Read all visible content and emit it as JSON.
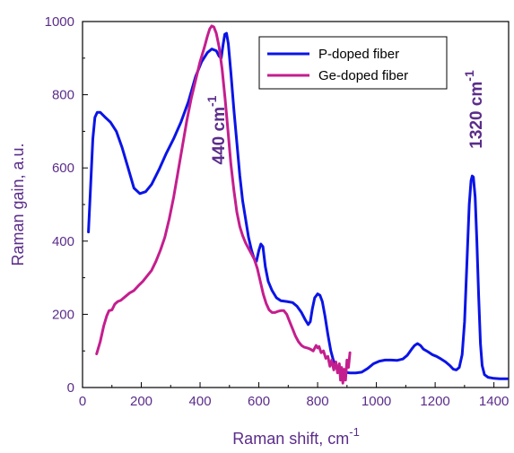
{
  "chart_data": {
    "type": "line",
    "title": "",
    "xlabel": "Raman shift, cm",
    "xlabel_superscript": "-1",
    "ylabel": "Raman gain, a.u.",
    "xlim": [
      0,
      1450
    ],
    "ylim": [
      0,
      1000
    ],
    "x_ticks": [
      0,
      200,
      400,
      600,
      800,
      1000,
      1200,
      1400
    ],
    "y_ticks": [
      0,
      200,
      400,
      600,
      800,
      1000
    ],
    "x_tick_labels": [
      "0",
      "200",
      "400",
      "600",
      "800",
      "1000",
      "1200",
      "1400"
    ],
    "y_tick_labels": [
      "0",
      "200",
      "400",
      "600",
      "800",
      "1000"
    ],
    "grid": false,
    "legend_position": "top-right",
    "axis_color": "#5b2c8a",
    "series": [
      {
        "name": "P-doped fiber",
        "color": "#0a14e6",
        "points": [
          [
            20,
            425
          ],
          [
            28,
            560
          ],
          [
            35,
            680
          ],
          [
            42,
            738
          ],
          [
            50,
            752
          ],
          [
            60,
            752
          ],
          [
            75,
            740
          ],
          [
            95,
            725
          ],
          [
            115,
            700
          ],
          [
            135,
            655
          ],
          [
            155,
            600
          ],
          [
            175,
            545
          ],
          [
            195,
            530
          ],
          [
            215,
            535
          ],
          [
            235,
            555
          ],
          [
            260,
            595
          ],
          [
            285,
            640
          ],
          [
            310,
            680
          ],
          [
            335,
            725
          ],
          [
            360,
            780
          ],
          [
            385,
            850
          ],
          [
            405,
            890
          ],
          [
            425,
            915
          ],
          [
            440,
            925
          ],
          [
            455,
            920
          ],
          [
            465,
            905
          ],
          [
            472,
            900
          ],
          [
            478,
            935
          ],
          [
            484,
            965
          ],
          [
            490,
            968
          ],
          [
            496,
            940
          ],
          [
            505,
            860
          ],
          [
            515,
            760
          ],
          [
            525,
            670
          ],
          [
            535,
            580
          ],
          [
            545,
            510
          ],
          [
            555,
            460
          ],
          [
            565,
            410
          ],
          [
            575,
            375
          ],
          [
            585,
            350
          ],
          [
            592,
            345
          ],
          [
            600,
            375
          ],
          [
            607,
            392
          ],
          [
            614,
            385
          ],
          [
            622,
            330
          ],
          [
            632,
            290
          ],
          [
            645,
            265
          ],
          [
            660,
            245
          ],
          [
            675,
            237
          ],
          [
            695,
            235
          ],
          [
            715,
            232
          ],
          [
            730,
            222
          ],
          [
            745,
            205
          ],
          [
            758,
            185
          ],
          [
            768,
            172
          ],
          [
            775,
            180
          ],
          [
            782,
            215
          ],
          [
            790,
            245
          ],
          [
            800,
            256
          ],
          [
            808,
            252
          ],
          [
            816,
            235
          ],
          [
            825,
            195
          ],
          [
            835,
            145
          ],
          [
            845,
            100
          ],
          [
            855,
            70
          ],
          [
            865,
            52
          ],
          [
            875,
            45
          ],
          [
            890,
            42
          ],
          [
            910,
            40
          ],
          [
            930,
            40
          ],
          [
            950,
            42
          ],
          [
            970,
            52
          ],
          [
            990,
            65
          ],
          [
            1010,
            72
          ],
          [
            1030,
            75
          ],
          [
            1050,
            75
          ],
          [
            1070,
            74
          ],
          [
            1090,
            78
          ],
          [
            1105,
            88
          ],
          [
            1120,
            105
          ],
          [
            1130,
            115
          ],
          [
            1140,
            120
          ],
          [
            1150,
            115
          ],
          [
            1160,
            105
          ],
          [
            1175,
            98
          ],
          [
            1190,
            90
          ],
          [
            1205,
            85
          ],
          [
            1220,
            78
          ],
          [
            1235,
            70
          ],
          [
            1250,
            60
          ],
          [
            1262,
            50
          ],
          [
            1272,
            48
          ],
          [
            1282,
            55
          ],
          [
            1292,
            90
          ],
          [
            1300,
            180
          ],
          [
            1308,
            340
          ],
          [
            1316,
            500
          ],
          [
            1322,
            565
          ],
          [
            1326,
            578
          ],
          [
            1330,
            575
          ],
          [
            1336,
            520
          ],
          [
            1342,
            400
          ],
          [
            1348,
            250
          ],
          [
            1354,
            120
          ],
          [
            1360,
            60
          ],
          [
            1368,
            35
          ],
          [
            1380,
            28
          ],
          [
            1400,
            25
          ],
          [
            1420,
            24
          ],
          [
            1445,
            24
          ]
        ]
      },
      {
        "name": "Ge-doped fiber",
        "color": "#c41e8e",
        "points": [
          [
            48,
            92
          ],
          [
            60,
            125
          ],
          [
            72,
            168
          ],
          [
            82,
            195
          ],
          [
            90,
            210
          ],
          [
            100,
            212
          ],
          [
            110,
            228
          ],
          [
            120,
            235
          ],
          [
            130,
            238
          ],
          [
            145,
            248
          ],
          [
            160,
            258
          ],
          [
            175,
            265
          ],
          [
            190,
            278
          ],
          [
            205,
            290
          ],
          [
            220,
            305
          ],
          [
            235,
            320
          ],
          [
            250,
            345
          ],
          [
            265,
            375
          ],
          [
            280,
            410
          ],
          [
            295,
            460
          ],
          [
            310,
            520
          ],
          [
            325,
            590
          ],
          [
            340,
            660
          ],
          [
            355,
            730
          ],
          [
            370,
            790
          ],
          [
            385,
            840
          ],
          [
            400,
            890
          ],
          [
            415,
            930
          ],
          [
            425,
            960
          ],
          [
            433,
            980
          ],
          [
            440,
            988
          ],
          [
            447,
            985
          ],
          [
            455,
            968
          ],
          [
            465,
            930
          ],
          [
            475,
            870
          ],
          [
            485,
            790
          ],
          [
            495,
            700
          ],
          [
            505,
            610
          ],
          [
            515,
            540
          ],
          [
            525,
            480
          ],
          [
            535,
            440
          ],
          [
            545,
            415
          ],
          [
            555,
            395
          ],
          [
            565,
            380
          ],
          [
            575,
            365
          ],
          [
            585,
            350
          ],
          [
            595,
            325
          ],
          [
            605,
            290
          ],
          [
            615,
            255
          ],
          [
            625,
            230
          ],
          [
            635,
            212
          ],
          [
            645,
            205
          ],
          [
            655,
            205
          ],
          [
            665,
            208
          ],
          [
            675,
            210
          ],
          [
            685,
            210
          ],
          [
            695,
            200
          ],
          [
            705,
            180
          ],
          [
            715,
            160
          ],
          [
            725,
            140
          ],
          [
            735,
            125
          ],
          [
            745,
            115
          ],
          [
            755,
            110
          ],
          [
            765,
            108
          ],
          [
            775,
            105
          ],
          [
            785,
            100
          ],
          [
            795,
            115
          ],
          [
            800,
            108
          ],
          [
            805,
            112
          ],
          [
            812,
            95
          ],
          [
            820,
            100
          ],
          [
            828,
            80
          ],
          [
            835,
            85
          ],
          [
            842,
            58
          ],
          [
            848,
            75
          ],
          [
            855,
            48
          ],
          [
            862,
            70
          ],
          [
            868,
            40
          ],
          [
            874,
            65
          ],
          [
            878,
            20
          ],
          [
            882,
            55
          ],
          [
            886,
            12
          ],
          [
            890,
            50
          ],
          [
            895,
            20
          ],
          [
            900,
            75
          ],
          [
            905,
            55
          ],
          [
            910,
            95
          ]
        ]
      }
    ],
    "annotations": [
      {
        "text": "440 cm",
        "superscript": "-1",
        "x": 450,
        "y": 700,
        "rotation": "vertical"
      },
      {
        "text": "1320 cm",
        "superscript": "-1",
        "x": 1330,
        "y": 720,
        "rotation": "vertical"
      }
    ]
  }
}
